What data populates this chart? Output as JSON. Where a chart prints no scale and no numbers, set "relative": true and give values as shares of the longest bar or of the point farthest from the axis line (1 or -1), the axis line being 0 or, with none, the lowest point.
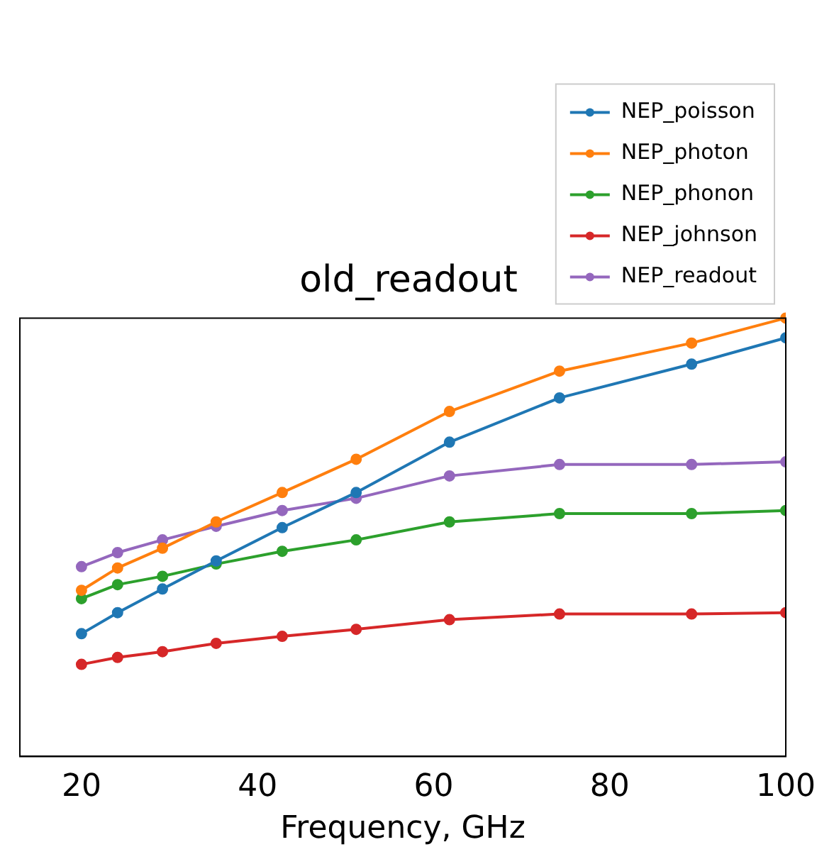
{
  "chart_data": {
    "type": "line",
    "title": "old_readout",
    "xlabel": "Frequency, GHz",
    "relative": true,
    "xlim": [
      13,
      100
    ],
    "xticks": [
      20,
      40,
      60,
      80,
      100
    ],
    "x": [
      20,
      24.1,
      29.2,
      35.3,
      42.8,
      51.2,
      61.8,
      74.3,
      89.3,
      100
    ],
    "grid": false,
    "legend": "top right",
    "marker": "circle",
    "line_style": "solid",
    "series": [
      {
        "name": "NEP_poisson",
        "color": "#1f77b4",
        "values": [
          0.28,
          0.328,
          0.382,
          0.446,
          0.522,
          0.602,
          0.717,
          0.818,
          0.895,
          0.955
        ]
      },
      {
        "name": "NEP_photon",
        "color": "#ff7f0e",
        "values": [
          0.379,
          0.43,
          0.475,
          0.535,
          0.602,
          0.678,
          0.787,
          0.879,
          0.943,
          1
        ]
      },
      {
        "name": "NEP_phonon",
        "color": "#2ca02c",
        "values": [
          0.36,
          0.392,
          0.411,
          0.439,
          0.468,
          0.494,
          0.535,
          0.554,
          0.554,
          0.561
        ]
      },
      {
        "name": "NEP_johnson",
        "color": "#d62728",
        "values": [
          0.21,
          0.226,
          0.239,
          0.258,
          0.274,
          0.29,
          0.312,
          0.325,
          0.325,
          0.328
        ]
      },
      {
        "name": "NEP_readout",
        "color": "#9467bd",
        "values": [
          0.433,
          0.465,
          0.494,
          0.525,
          0.561,
          0.589,
          0.64,
          0.666,
          0.666,
          0.672
        ]
      }
    ]
  }
}
